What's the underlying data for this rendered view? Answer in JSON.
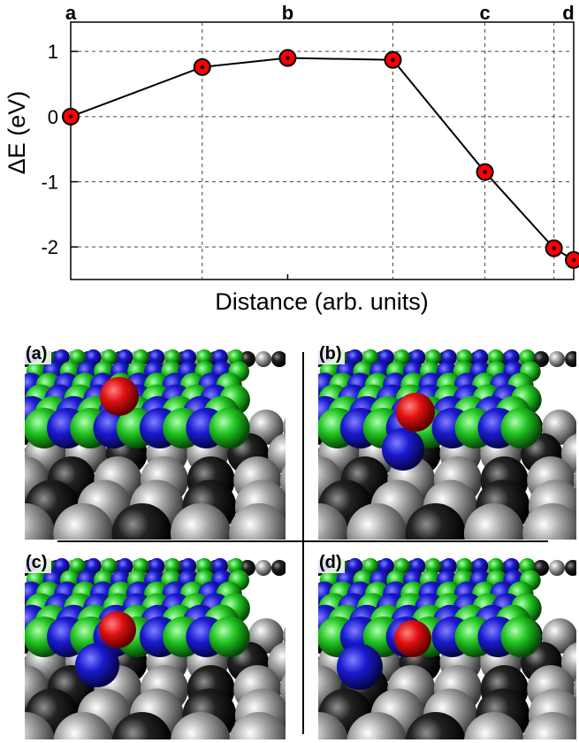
{
  "chart_data": {
    "type": "line",
    "xlabel": "Distance (arb. units)",
    "ylabel": "ΔE (eV)",
    "ylim": [
      -2.5,
      1.45
    ],
    "yticks": [
      1,
      0,
      -1,
      -2
    ],
    "ytick_labels": [
      "1",
      "0",
      "-1",
      "-2"
    ],
    "grid": true,
    "x": [
      0,
      2.0,
      3.3,
      4.9,
      6.3,
      7.35,
      7.65
    ],
    "y": [
      0,
      0.76,
      0.9,
      0.87,
      -0.85,
      -2.02,
      -2.2
    ],
    "xlim": [
      0,
      7.65
    ],
    "vgrid_x": [
      2.0,
      4.9,
      6.3,
      7.35
    ],
    "top_labels": [
      {
        "x": 0,
        "text": "a"
      },
      {
        "x": 3.3,
        "text": "b"
      },
      {
        "x": 6.3,
        "text": "c"
      },
      {
        "x": 7.65,
        "text": "d"
      }
    ],
    "marker_color": "#ff0000",
    "line_color": "#000000"
  },
  "panels": [
    {
      "label": "(a)"
    },
    {
      "label": "(b)"
    },
    {
      "label": "(c)"
    },
    {
      "label": "(d)"
    }
  ],
  "colors": {
    "adsorbate": "#dd1111",
    "blue_atoms": "#1a1ad0",
    "green_atoms": "#22c522",
    "dark_atoms": "#111111",
    "grey_atoms": "#9a9a9a"
  }
}
